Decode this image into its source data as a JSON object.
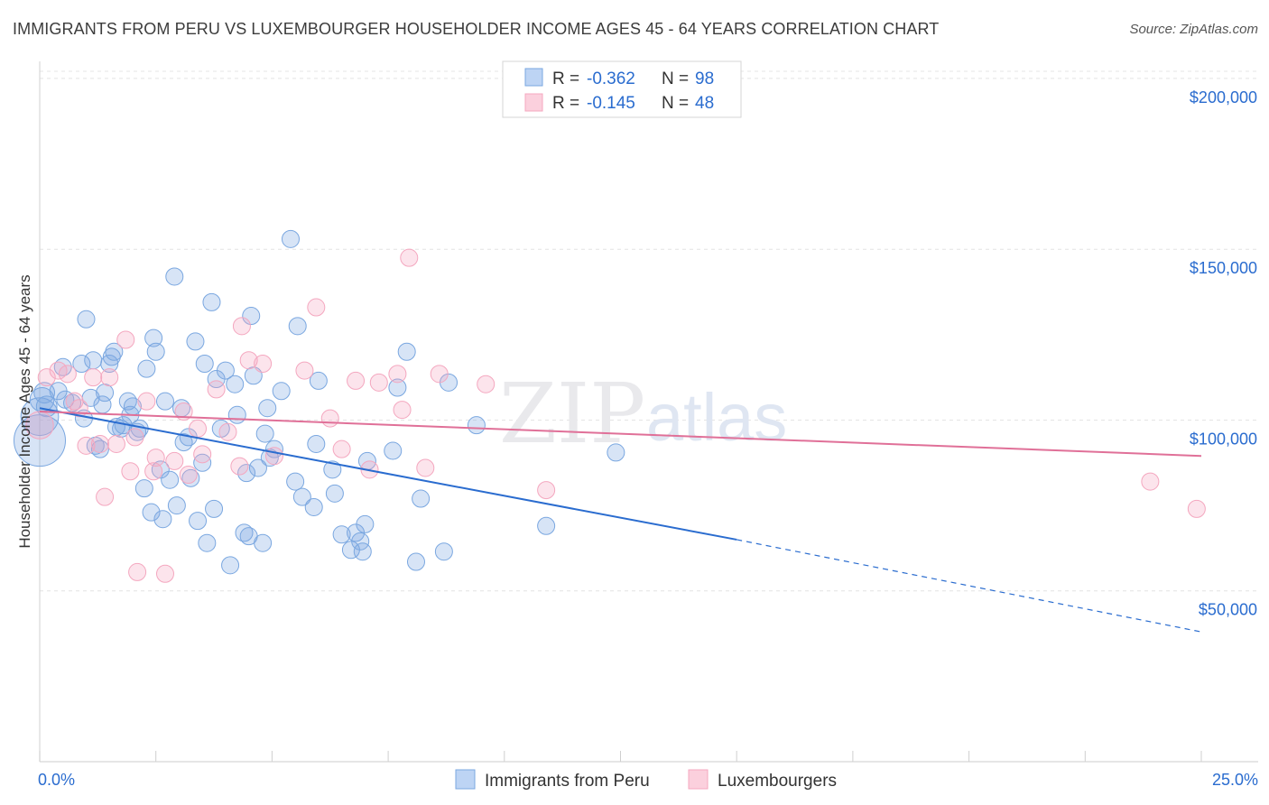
{
  "chart_data": {
    "type": "scatter",
    "title": "IMMIGRANTS FROM PERU VS LUXEMBOURGER HOUSEHOLDER INCOME AGES 45 - 64 YEARS CORRELATION CHART",
    "source": "Source: ZipAtlas.com",
    "watermark": {
      "zip": "ZIP",
      "atlas": "atlas"
    },
    "ylabel": "Householder Income Ages 45 - 64 years",
    "xlabel": "",
    "xlim": [
      0,
      25
    ],
    "ylim": [
      0,
      205000
    ],
    "x_tick_labels": [
      {
        "value": 0,
        "label": "0.0%"
      },
      {
        "value": 25,
        "label": "25.0%"
      }
    ],
    "y_ticks": [
      {
        "value": 50000,
        "label": "$50,000"
      },
      {
        "value": 100000,
        "label": "$100,000"
      },
      {
        "value": 150000,
        "label": "$150,000"
      },
      {
        "value": 200000,
        "label": "$200,000"
      }
    ],
    "grid": true,
    "legend_position": "bottom",
    "stats": [
      {
        "r_label": "R =",
        "r_value": "-0.362",
        "n_label": "N =",
        "n_value": "98"
      },
      {
        "r_label": "R =",
        "r_value": "-0.145",
        "n_label": "N =",
        "n_value": "48"
      }
    ],
    "series": [
      {
        "name": "Immigrants from Peru",
        "color": "#7aa7e0",
        "line_color": "#2a6ccf",
        "trend": {
          "x0": 0,
          "y0": 103500,
          "x1": 15,
          "y1": 65000,
          "x_dash_end": 25,
          "y_dash_end": 38000
        },
        "points": [
          [
            0.0,
            94000,
            30
          ],
          [
            0.0,
            101000,
            22
          ],
          [
            0.05,
            106000,
            14
          ],
          [
            0.1,
            108000,
            12
          ],
          [
            0.15,
            104000,
            12
          ],
          [
            0.4,
            108500,
            10
          ],
          [
            0.5,
            115500,
            10
          ],
          [
            0.55,
            106000,
            10
          ],
          [
            0.7,
            105000,
            10
          ],
          [
            0.9,
            116500,
            10
          ],
          [
            0.95,
            100500,
            10
          ],
          [
            1.0,
            129500,
            10
          ],
          [
            1.1,
            106500,
            10
          ],
          [
            1.15,
            117500,
            10
          ],
          [
            1.2,
            92500,
            10
          ],
          [
            1.3,
            91500,
            10
          ],
          [
            1.35,
            104500,
            10
          ],
          [
            1.4,
            108000,
            10
          ],
          [
            1.5,
            116500,
            10
          ],
          [
            1.55,
            118500,
            10
          ],
          [
            1.6,
            120000,
            10
          ],
          [
            1.65,
            98000,
            10
          ],
          [
            1.75,
            97500,
            10
          ],
          [
            1.8,
            98500,
            10
          ],
          [
            1.9,
            105500,
            10
          ],
          [
            1.95,
            101500,
            10
          ],
          [
            2.0,
            104000,
            10
          ],
          [
            2.1,
            96500,
            10
          ],
          [
            2.15,
            97500,
            10
          ],
          [
            2.25,
            80000,
            10
          ],
          [
            2.3,
            115000,
            10
          ],
          [
            2.4,
            73000,
            10
          ],
          [
            2.45,
            124000,
            10
          ],
          [
            2.5,
            120000,
            10
          ],
          [
            2.6,
            85500,
            10
          ],
          [
            2.65,
            71000,
            10
          ],
          [
            2.7,
            105500,
            10
          ],
          [
            2.8,
            82500,
            10
          ],
          [
            2.9,
            142000,
            10
          ],
          [
            2.95,
            75000,
            10
          ],
          [
            3.05,
            103500,
            10
          ],
          [
            3.1,
            93500,
            10
          ],
          [
            3.2,
            95000,
            10
          ],
          [
            3.25,
            83000,
            10
          ],
          [
            3.35,
            123000,
            10
          ],
          [
            3.4,
            70500,
            10
          ],
          [
            3.5,
            87500,
            10
          ],
          [
            3.55,
            116500,
            10
          ],
          [
            3.6,
            64000,
            10
          ],
          [
            3.7,
            134500,
            10
          ],
          [
            3.75,
            74000,
            10
          ],
          [
            3.8,
            112000,
            10
          ],
          [
            3.9,
            97500,
            10
          ],
          [
            4.0,
            114500,
            10
          ],
          [
            4.1,
            57500,
            10
          ],
          [
            4.2,
            110500,
            10
          ],
          [
            4.25,
            101500,
            10
          ],
          [
            4.4,
            67000,
            10
          ],
          [
            4.45,
            84500,
            10
          ],
          [
            4.5,
            66000,
            10
          ],
          [
            4.55,
            130500,
            10
          ],
          [
            4.6,
            113000,
            10
          ],
          [
            4.7,
            86000,
            10
          ],
          [
            4.8,
            64000,
            10
          ],
          [
            4.85,
            96000,
            10
          ],
          [
            4.9,
            103500,
            10
          ],
          [
            4.95,
            89000,
            10
          ],
          [
            5.05,
            91500,
            10
          ],
          [
            5.2,
            108500,
            10
          ],
          [
            5.4,
            153000,
            10
          ],
          [
            5.5,
            82000,
            10
          ],
          [
            5.55,
            127500,
            10
          ],
          [
            5.65,
            77500,
            10
          ],
          [
            5.9,
            74500,
            10
          ],
          [
            5.95,
            93000,
            10
          ],
          [
            6.0,
            111500,
            10
          ],
          [
            6.3,
            85500,
            10
          ],
          [
            6.35,
            78500,
            10
          ],
          [
            6.5,
            66500,
            10
          ],
          [
            6.7,
            62000,
            10
          ],
          [
            6.8,
            67000,
            10
          ],
          [
            6.9,
            64500,
            10
          ],
          [
            6.95,
            61500,
            10
          ],
          [
            7.0,
            69500,
            10
          ],
          [
            7.05,
            88000,
            10
          ],
          [
            7.6,
            91000,
            10
          ],
          [
            7.7,
            109500,
            10
          ],
          [
            7.9,
            120000,
            10
          ],
          [
            8.1,
            58500,
            10
          ],
          [
            8.2,
            77000,
            10
          ],
          [
            8.7,
            61500,
            10
          ],
          [
            8.8,
            111000,
            10
          ],
          [
            9.4,
            98500,
            10
          ],
          [
            10.9,
            69000,
            10
          ],
          [
            12.4,
            90500,
            10
          ]
        ]
      },
      {
        "name": "Luxembourgers",
        "color": "#f4a7bf",
        "line_color": "#e07098",
        "trend": {
          "x0": 0,
          "y0": 102500,
          "x1": 25,
          "y1": 89500
        },
        "points": [
          [
            0.0,
            98500,
            16
          ],
          [
            0.15,
            112500,
            10
          ],
          [
            0.4,
            114500,
            10
          ],
          [
            0.6,
            113500,
            10
          ],
          [
            0.75,
            105500,
            10
          ],
          [
            0.85,
            103500,
            10
          ],
          [
            1.0,
            92500,
            10
          ],
          [
            1.15,
            112500,
            10
          ],
          [
            1.3,
            93000,
            10
          ],
          [
            1.4,
            77500,
            10
          ],
          [
            1.5,
            112500,
            10
          ],
          [
            1.65,
            93000,
            10
          ],
          [
            1.85,
            123500,
            10
          ],
          [
            1.95,
            85000,
            10
          ],
          [
            2.05,
            95000,
            10
          ],
          [
            2.1,
            55500,
            10
          ],
          [
            2.3,
            105500,
            10
          ],
          [
            2.45,
            85000,
            10
          ],
          [
            2.5,
            89000,
            10
          ],
          [
            2.7,
            55000,
            10
          ],
          [
            2.9,
            88000,
            10
          ],
          [
            3.1,
            102500,
            10
          ],
          [
            3.2,
            84000,
            10
          ],
          [
            3.4,
            97500,
            10
          ],
          [
            3.5,
            90000,
            10
          ],
          [
            3.8,
            109000,
            10
          ],
          [
            4.05,
            96500,
            10
          ],
          [
            4.3,
            86500,
            10
          ],
          [
            4.35,
            127500,
            10
          ],
          [
            4.5,
            117500,
            10
          ],
          [
            4.8,
            116500,
            10
          ],
          [
            5.05,
            89500,
            10
          ],
          [
            5.7,
            114500,
            10
          ],
          [
            5.95,
            133000,
            10
          ],
          [
            6.25,
            100500,
            10
          ],
          [
            6.5,
            91500,
            10
          ],
          [
            6.8,
            111500,
            10
          ],
          [
            7.1,
            85500,
            10
          ],
          [
            7.3,
            111000,
            10
          ],
          [
            7.7,
            113500,
            10
          ],
          [
            7.8,
            103000,
            10
          ],
          [
            7.95,
            147500,
            10
          ],
          [
            8.3,
            86000,
            10
          ],
          [
            8.6,
            113500,
            10
          ],
          [
            9.6,
            110500,
            10
          ],
          [
            10.9,
            79500,
            10
          ],
          [
            23.9,
            82000,
            10
          ],
          [
            24.9,
            74000,
            10
          ]
        ]
      }
    ]
  }
}
